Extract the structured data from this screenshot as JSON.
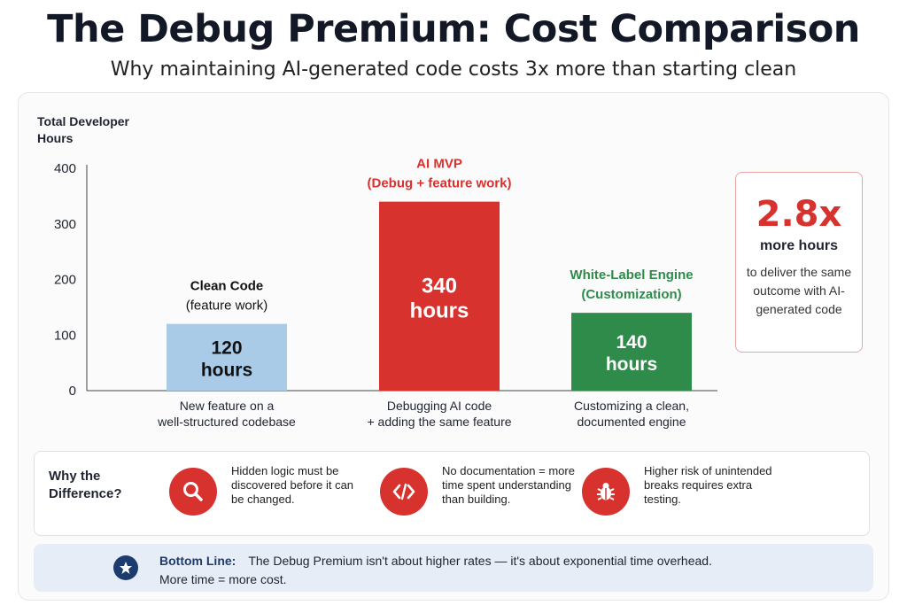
{
  "header": {
    "title": "The Debug Premium: Cost Comparison",
    "subtitle": "Why maintaining AI-generated code costs 3x more than starting clean"
  },
  "chart_data": {
    "type": "bar",
    "ylabel": "Total Developer Hours",
    "ylim": [
      0,
      400
    ],
    "yticks": [
      "400",
      "300",
      "200",
      "100",
      "0"
    ],
    "yticks_values": [
      400,
      300,
      200,
      100,
      0
    ],
    "grid": false,
    "categories": [
      {
        "label_line1": "Clean Code",
        "label_line2": "(feature work)",
        "value": 120,
        "value_label_line1": "120",
        "value_label_line2": "hours",
        "desc_line1": "New feature on a",
        "desc_line2": "well-structured codebase",
        "color": "#a9cbe8",
        "label_color": "#111111"
      },
      {
        "label_line1": "AI MVP",
        "label_line2": "(Debug + feature work)",
        "value": 340,
        "value_label_line1": "340",
        "value_label_line2": "hours",
        "desc_line1": "Debugging AI code",
        "desc_line2": "+ adding the same feature",
        "color": "#d8322f",
        "label_color": "#d8322f"
      },
      {
        "label_line1": "White-Label Engine",
        "label_line2": "(Customization)",
        "value": 140,
        "value_label_line1": "140",
        "value_label_line2": "hours",
        "desc_line1": "Customizing a clean,",
        "desc_line2": "documented engine",
        "color": "#2e8b4a",
        "label_color": "#2e8b4a"
      }
    ]
  },
  "callout": {
    "big": "2.8x",
    "mid": "more hours",
    "small": "to deliver the same outcome with AI-generated code"
  },
  "why": {
    "label": "Why the Difference?",
    "reasons": [
      {
        "icon": "magnifier-icon",
        "text": "Hidden logic must be discovered before it can be changed."
      },
      {
        "icon": "code-icon",
        "text": "No documentation = more time spent understanding than building."
      },
      {
        "icon": "bug-icon",
        "text": "Higher risk of unintended breaks requires extra testing."
      }
    ]
  },
  "bottom_line": {
    "title": "Bottom Line:",
    "text1": "The Debug Premium isn't about higher rates — it's about exponential time overhead.",
    "text2": "More time = more cost.",
    "icon": "star-icon"
  },
  "colors": {
    "accent_red": "#d8322f",
    "accent_green": "#2e8b4a",
    "accent_blue": "#a9cbe8",
    "navy": "#1d3c6e"
  }
}
